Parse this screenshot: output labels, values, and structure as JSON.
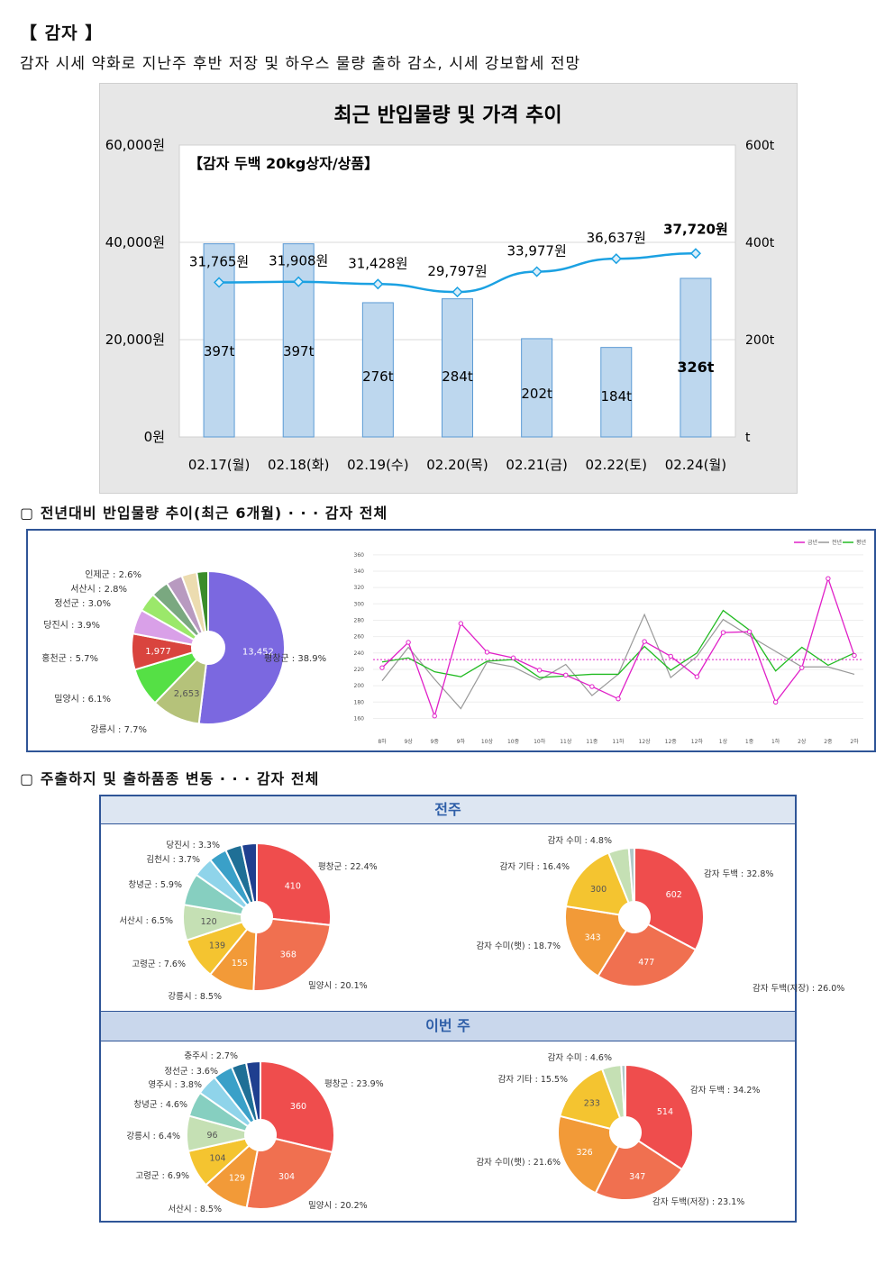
{
  "header": {
    "title": "【 감자 】",
    "subtitle": "감자 시세 약화로 지난주 후반 저장 및 하우스 물량 출하 감소, 시세 강보합세 전망"
  },
  "sections": {
    "volume_trend": "▢ 전년대비 반입물량 추이(최근 6개월) · · · 감자 전체",
    "origin_variety": "▢ 주출하지 및 출하품종 변동 · · · 감자 전체",
    "prev_week": "전주",
    "this_week": "이번 주"
  },
  "colors": {
    "bar_fill": "#bdd7ee",
    "bar_stroke": "#5b9bd5",
    "price_line": "#1ba1e2",
    "this_year": "#e020c8",
    "last_year": "#999999",
    "normal_year": "#22bb22",
    "box_border": "#2f5597"
  },
  "chart_data": [
    {
      "id": "price-volume",
      "type": "bar-line",
      "title": "최근 반입물량 및 가격 추이",
      "subtitle": "【감자 두백 20kg상자/상품】",
      "categories": [
        "02.17(월)",
        "02.18(화)",
        "02.19(수)",
        "02.20(목)",
        "02.21(금)",
        "02.22(토)",
        "02.24(월)"
      ],
      "volume_values": [
        397,
        397,
        276,
        284,
        202,
        184,
        326
      ],
      "volume_labels": [
        "397t",
        "397t",
        "276t",
        "284t",
        "202t",
        "184t",
        "326t"
      ],
      "price_values": [
        31765,
        31908,
        31428,
        29797,
        33977,
        36637,
        37720
      ],
      "price_labels": [
        "31,765원",
        "31,908원",
        "31,428원",
        "29,797원",
        "33,977원",
        "36,637원",
        "37,720원"
      ],
      "left_axis": {
        "ticks": [
          0,
          20000,
          40000,
          60000
        ],
        "labels": [
          "0원",
          "20,000원",
          "40,000원",
          "60,000원"
        ],
        "range": [
          0,
          60000
        ]
      },
      "right_axis": {
        "ticks": [
          0,
          200,
          400,
          600
        ],
        "labels": [
          "t",
          "200t",
          "400t",
          "600t"
        ],
        "range": [
          0,
          600
        ]
      }
    },
    {
      "id": "origin-share-6m",
      "type": "pie",
      "slices": [
        {
          "label": "평창군 : 38.9%",
          "value": 38.9,
          "inner": "13,452",
          "color": "#7b68e0"
        },
        {
          "label": "강릉시 : 7.7%",
          "value": 7.7,
          "inner": "2,653",
          "color": "#b5c27a"
        },
        {
          "label": "밀양시 : 6.1%",
          "value": 6.1,
          "inner": "",
          "color": "#55e045"
        },
        {
          "label": "홍천군 : 5.7%",
          "value": 5.7,
          "inner": "1,977",
          "color": "#d9443e"
        },
        {
          "label": "당진시 : 3.9%",
          "value": 3.9,
          "inner": "",
          "color": "#d9a0e8"
        },
        {
          "label": "정선군 : 3.0%",
          "value": 3.0,
          "inner": "",
          "color": "#9be86a"
        },
        {
          "label": "서산시 : 2.8%",
          "value": 2.8,
          "inner": "",
          "color": "#7aa880"
        },
        {
          "label": "인제군 : 2.6%",
          "value": 2.6,
          "inner": "",
          "color": "#b89ac0"
        },
        {
          "label": "",
          "value": 2.4,
          "inner": "",
          "color": "#ecdcb0"
        },
        {
          "label": "",
          "value": 1.8,
          "inner": "",
          "color": "#3a8c2a"
        }
      ]
    },
    {
      "id": "volume-line-6m",
      "type": "line",
      "legend": [
        "금년",
        "전년",
        "평년"
      ],
      "legend_position": "top-right",
      "categories": [
        "8하",
        "9상",
        "9중",
        "9하",
        "10상",
        "10중",
        "10하",
        "11상",
        "11중",
        "11하",
        "12상",
        "12중",
        "12하",
        "1상",
        "1중",
        "1하",
        "2상",
        "2중",
        "2하"
      ],
      "y_ticks": [
        160,
        180,
        200,
        220,
        240,
        260,
        280,
        300,
        320,
        340,
        360
      ],
      "ylim": [
        155,
        362
      ],
      "series": [
        {
          "name": "금년",
          "values": [
            222,
            253,
            163,
            276,
            241,
            234,
            219,
            213,
            199,
            184,
            254,
            236,
            211,
            265,
            266,
            180,
            222,
            331,
            237
          ]
        },
        {
          "name": "전년",
          "values": [
            206,
            247,
            208,
            172,
            229,
            223,
            207,
            226,
            188,
            214,
            287,
            210,
            236,
            281,
            261,
            242,
            223,
            223,
            214
          ]
        },
        {
          "name": "평년",
          "values": [
            229,
            234,
            217,
            211,
            230,
            232,
            210,
            212,
            214,
            214,
            248,
            219,
            240,
            292,
            268,
            218,
            247,
            225,
            240
          ]
        }
      ],
      "reference_line": 232
    },
    {
      "id": "origin-prev-week",
      "type": "pie",
      "slices": [
        {
          "label": "평창군 : 22.4%",
          "value": 22.4,
          "inner": "410",
          "color": "#ef4d4d"
        },
        {
          "label": "밀양시 : 20.1%",
          "value": 20.1,
          "inner": "368",
          "color": "#f07050"
        },
        {
          "label": "강릉시 : 8.5%",
          "value": 8.5,
          "inner": "155",
          "color": "#f29a38"
        },
        {
          "label": "고령군 : 7.6%",
          "value": 7.6,
          "inner": "139",
          "color": "#f4c430"
        },
        {
          "label": "서산시 : 6.5%",
          "value": 6.5,
          "inner": "120",
          "color": "#c5e0b4"
        },
        {
          "label": "창녕군 : 5.9%",
          "value": 5.9,
          "inner": "",
          "color": "#86cfc0"
        },
        {
          "label": "김천시 : 3.7%",
          "value": 3.7,
          "inner": "",
          "color": "#8fd4ea"
        },
        {
          "label": "당진시 : 3.3%",
          "value": 3.3,
          "inner": "",
          "color": "#3aa0c8"
        },
        {
          "label": "",
          "value": 3.0,
          "inner": "",
          "color": "#1f6f96"
        },
        {
          "label": "",
          "value": 2.8,
          "inner": "",
          "color": "#1f3f8f"
        }
      ]
    },
    {
      "id": "variety-prev-week",
      "type": "pie",
      "slices": [
        {
          "label": "감자 두백 : 32.8%",
          "value": 32.8,
          "inner": "602",
          "color": "#ef4d4d"
        },
        {
          "label": "감자 두백(저장) : 26.0%",
          "value": 26.0,
          "inner": "477",
          "color": "#f07050"
        },
        {
          "label": "감자 수미(햇) : 18.7%",
          "value": 18.7,
          "inner": "343",
          "color": "#f29a38"
        },
        {
          "label": "감자 기타 : 16.4%",
          "value": 16.4,
          "inner": "300",
          "color": "#f4c430"
        },
        {
          "label": "감자 수미 : 4.8%",
          "value": 4.8,
          "inner": "",
          "color": "#c5e0b4"
        },
        {
          "label": "",
          "value": 1.3,
          "inner": "",
          "color": "#b0c8c8"
        }
      ]
    },
    {
      "id": "origin-this-week",
      "type": "pie",
      "slices": [
        {
          "label": "평창군 : 23.9%",
          "value": 23.9,
          "inner": "360",
          "color": "#ef4d4d"
        },
        {
          "label": "밀양시 : 20.2%",
          "value": 20.2,
          "inner": "304",
          "color": "#f07050"
        },
        {
          "label": "서산시 : 8.5%",
          "value": 8.5,
          "inner": "129",
          "color": "#f29a38"
        },
        {
          "label": "고령군 : 6.9%",
          "value": 6.9,
          "inner": "104",
          "color": "#f4c430"
        },
        {
          "label": "강릉시 : 6.4%",
          "value": 6.4,
          "inner": "96",
          "color": "#c5e0b4"
        },
        {
          "label": "창녕군 : 4.6%",
          "value": 4.6,
          "inner": "",
          "color": "#86cfc0"
        },
        {
          "label": "영주시 : 3.8%",
          "value": 3.8,
          "inner": "",
          "color": "#8fd4ea"
        },
        {
          "label": "정선군 : 3.6%",
          "value": 3.6,
          "inner": "",
          "color": "#3aa0c8"
        },
        {
          "label": "충주시 : 2.7%",
          "value": 2.7,
          "inner": "",
          "color": "#1f6f96"
        },
        {
          "label": "",
          "value": 2.6,
          "inner": "",
          "color": "#1f3f8f"
        }
      ]
    },
    {
      "id": "variety-this-week",
      "type": "pie",
      "slices": [
        {
          "label": "감자 두백 : 34.2%",
          "value": 34.2,
          "inner": "514",
          "color": "#ef4d4d"
        },
        {
          "label": "감자 두백(저장) : 23.1%",
          "value": 23.1,
          "inner": "347",
          "color": "#f07050"
        },
        {
          "label": "감자 수미(햇) : 21.6%",
          "value": 21.6,
          "inner": "326",
          "color": "#f29a38"
        },
        {
          "label": "감자 기타 : 15.5%",
          "value": 15.5,
          "inner": "233",
          "color": "#f4c430"
        },
        {
          "label": "감자 수미 : 4.6%",
          "value": 4.6,
          "inner": "",
          "color": "#c5e0b4"
        },
        {
          "label": "",
          "value": 1.0,
          "inner": "",
          "color": "#b0c8c8"
        }
      ]
    }
  ]
}
